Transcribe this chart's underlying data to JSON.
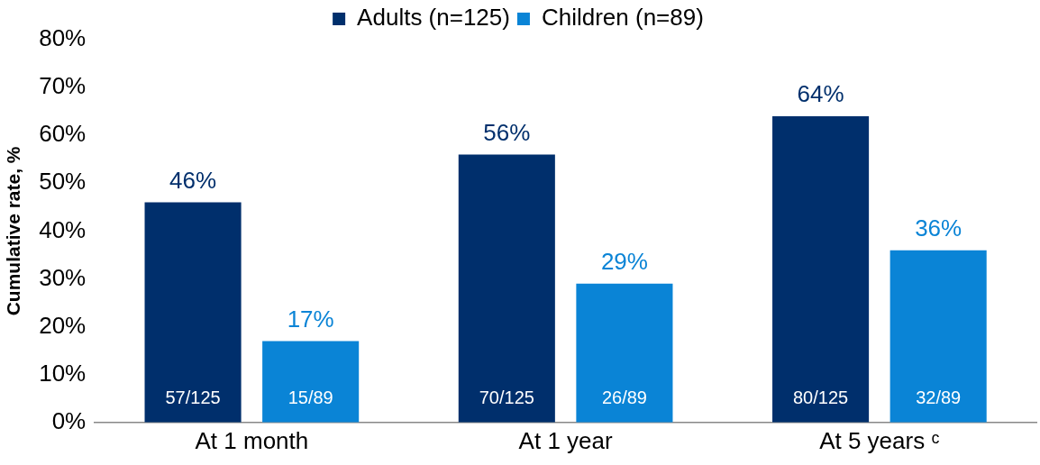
{
  "chart_data": {
    "type": "bar",
    "ylabel": "Cumulative rate, %",
    "categories": [
      "At 1 month",
      "At 1 year",
      "At 5 years ᶜ"
    ],
    "series": [
      {
        "name": "Adults (n=125)",
        "color": "#002f6c",
        "values": [
          46,
          56,
          64
        ],
        "value_labels": [
          "46%",
          "56%",
          "64%"
        ]
      },
      {
        "name": "Children (n=89)",
        "color": "#0a84d6",
        "values": [
          17,
          29,
          36
        ],
        "value_labels": [
          "17%",
          "29%",
          "36%"
        ]
      }
    ],
    "ylim": [
      0,
      80
    ],
    "yticks": [
      {
        "value": 0,
        "label": "0%"
      },
      {
        "value": 10,
        "label": "10%"
      },
      {
        "value": 20,
        "label": "20%"
      },
      {
        "value": 30,
        "label": "30%"
      },
      {
        "value": 40,
        "label": "40%"
      },
      {
        "value": 50,
        "label": "50%"
      },
      {
        "value": 60,
        "label": "60%"
      },
      {
        "value": 70,
        "label": "70%"
      },
      {
        "value": 80,
        "label": "80%"
      }
    ],
    "annotations": [
      "57/125",
      "15/89",
      "70/125",
      "26/89",
      "80/125",
      "32/89"
    ],
    "grid": false,
    "legend": "top"
  }
}
